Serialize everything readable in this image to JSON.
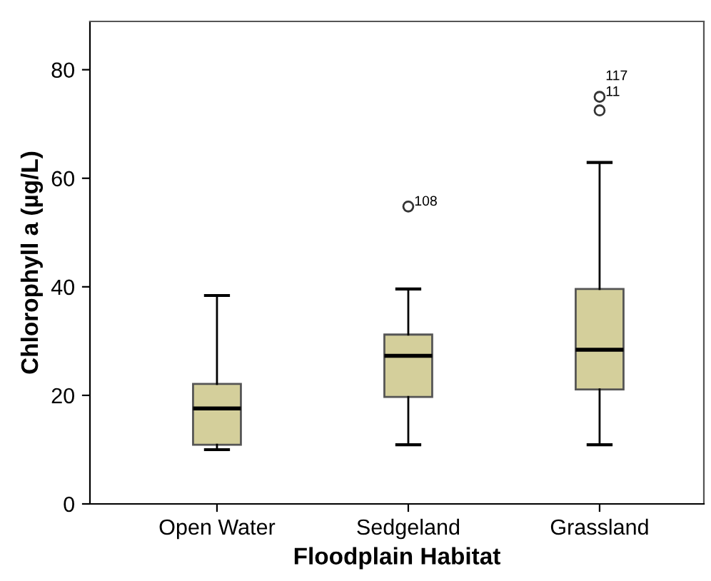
{
  "chart_data": {
    "type": "box",
    "xlabel": "Floodplain Habitat",
    "ylabel": "Chlorophyll a (µg/L)",
    "categories": [
      "Open Water",
      "Sedgeland",
      "Grassland"
    ],
    "series": [
      {
        "color": "#d4cf9b",
        "boxes": [
          {
            "low": 10.0,
            "q1": 10.9,
            "median": 17.6,
            "q3": 22.1,
            "high": 38.4
          },
          {
            "low": 10.9,
            "q1": 19.7,
            "median": 27.3,
            "q3": 31.2,
            "high": 39.6,
            "outliers": [
              54.8
            ]
          },
          {
            "low": 10.9,
            "q1": 21.1,
            "median": 28.4,
            "q3": 39.6,
            "high": 62.9,
            "outliers": [
              75.0,
              72.5
            ]
          }
        ]
      }
    ],
    "annotations": [
      "108",
      "11",
      "117"
    ],
    "ylim": [
      0,
      88.9
    ],
    "yticks": [
      0,
      20,
      40,
      60,
      80
    ],
    "grid": false,
    "legend": false
  }
}
